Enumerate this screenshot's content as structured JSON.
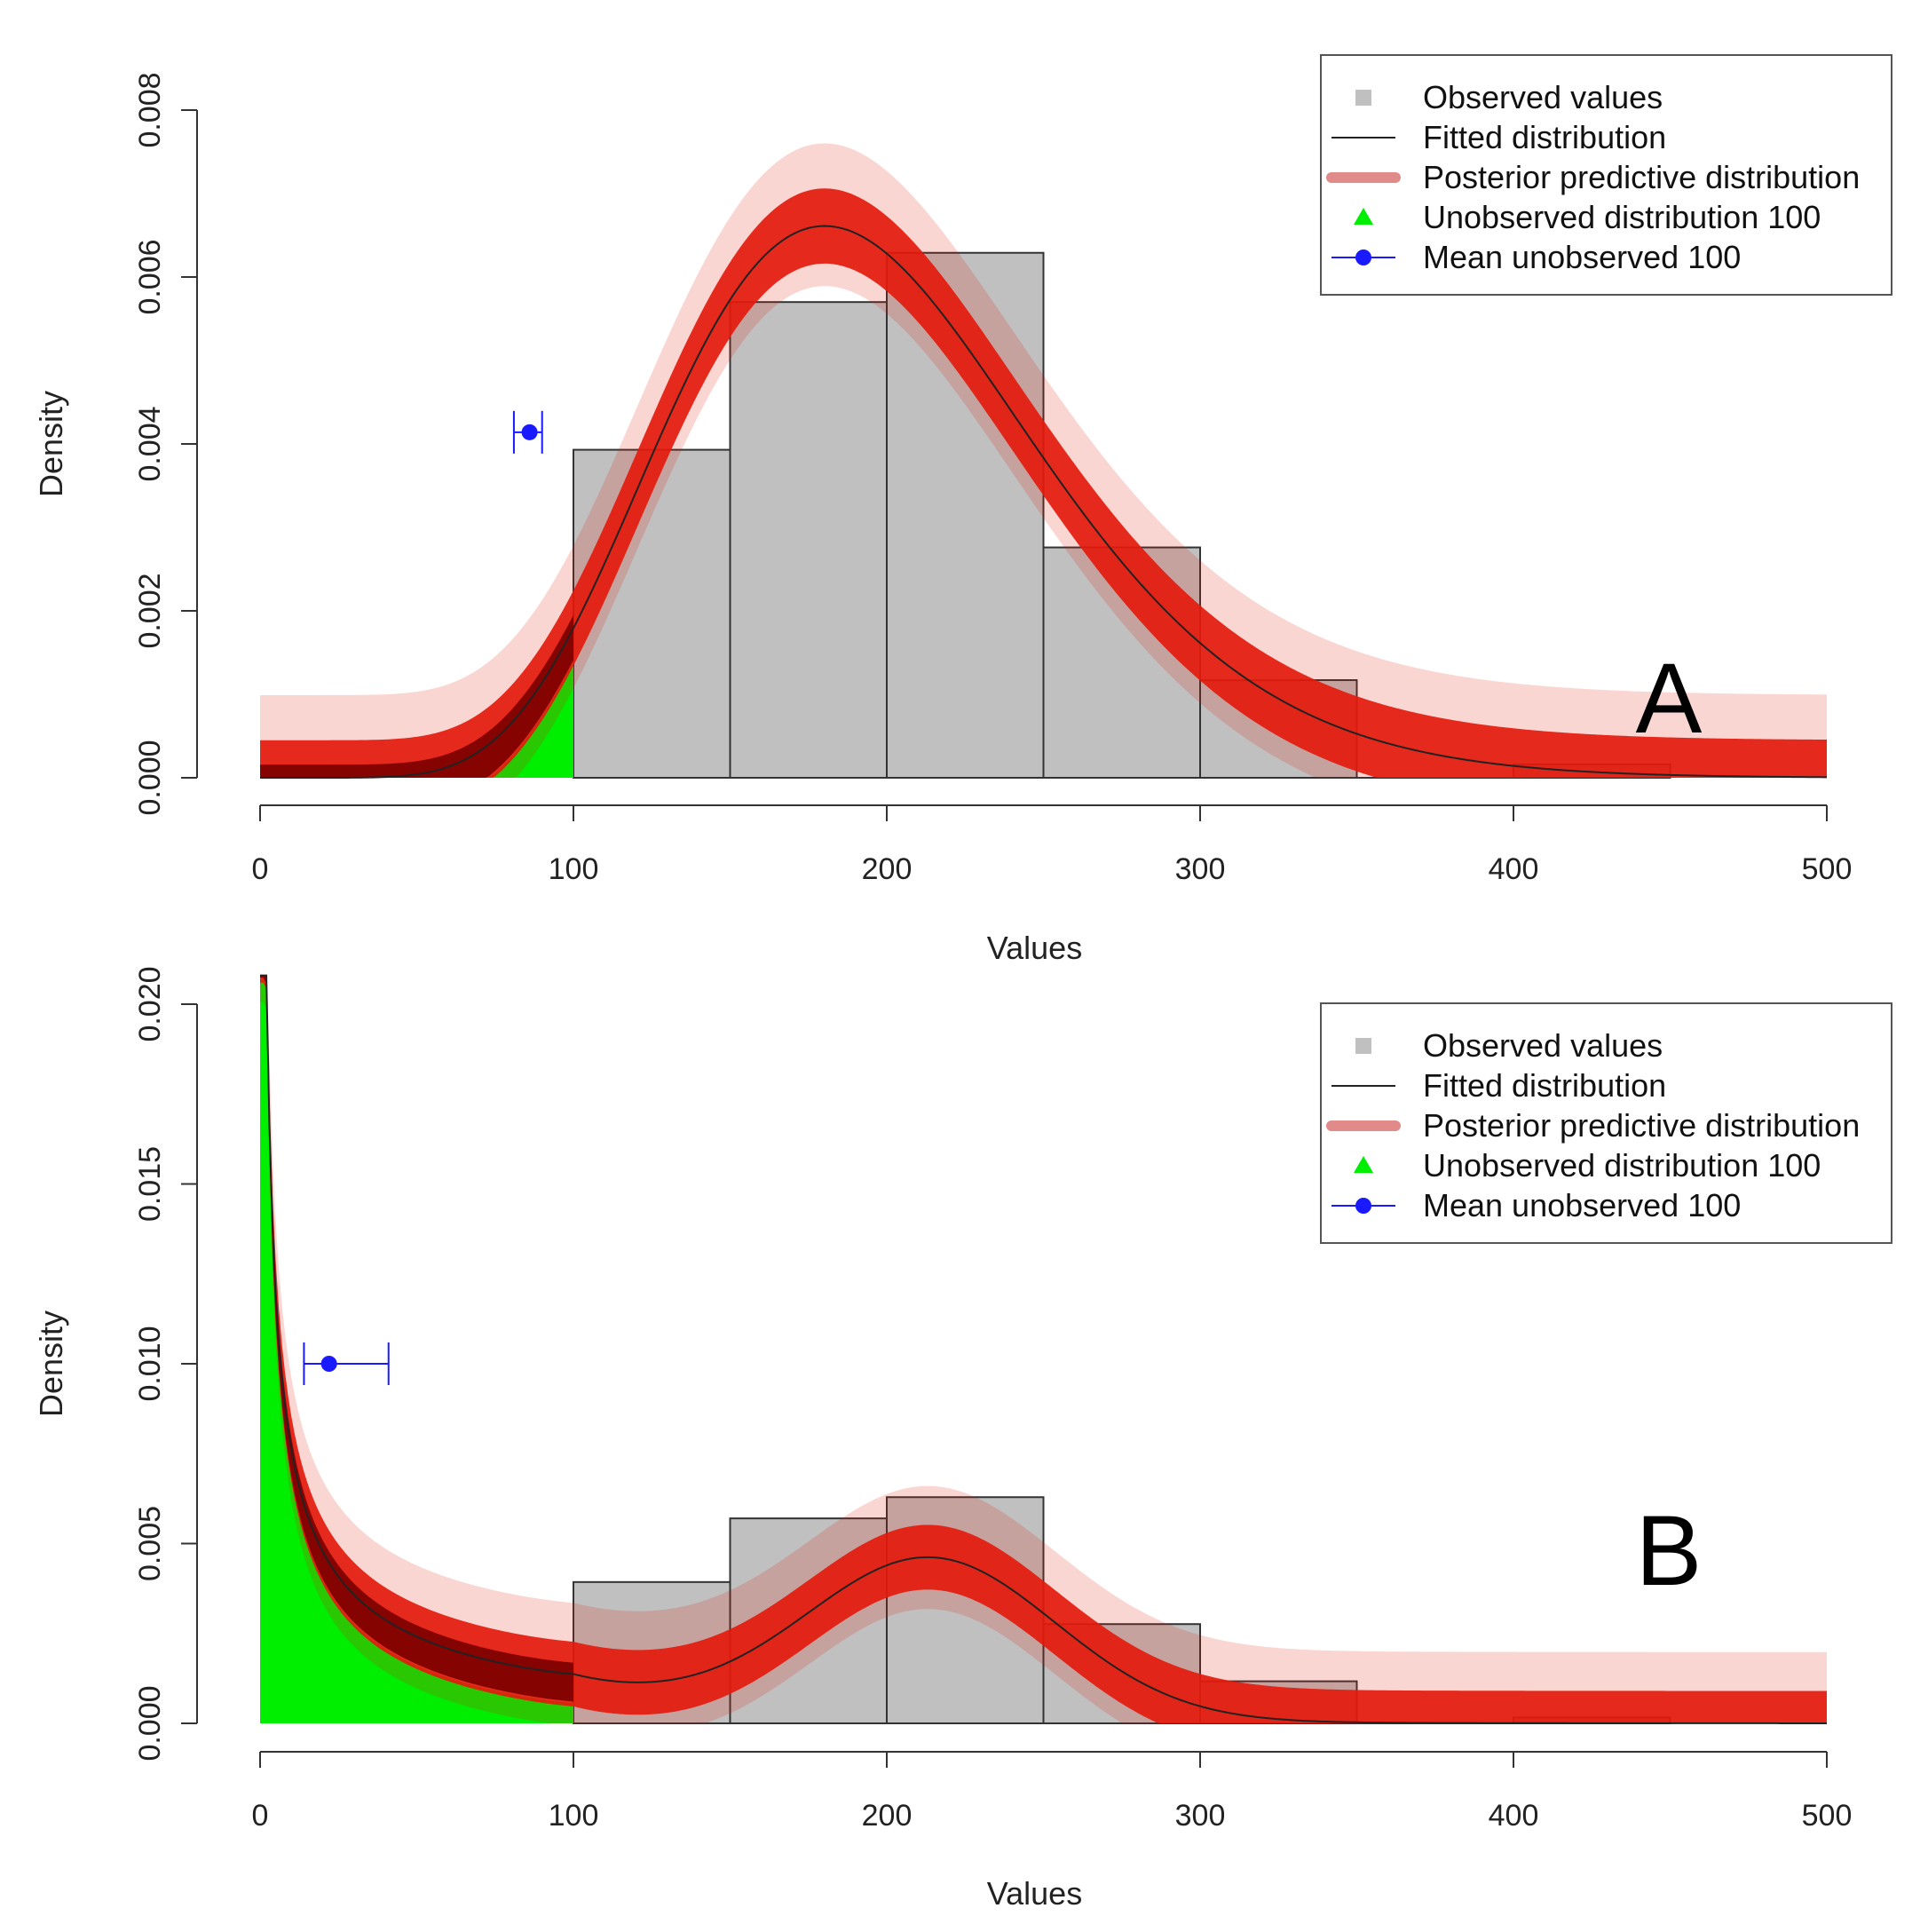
{
  "chart_data": [
    {
      "type": "bar",
      "panel_label": "A",
      "xlabel": "Values",
      "ylabel": "Density",
      "xlim": [
        0,
        500
      ],
      "ylim": [
        0,
        0.008
      ],
      "x_ticks": [
        "0",
        "100",
        "200",
        "300",
        "400",
        "500"
      ],
      "y_ticks": [
        "0.000",
        "0.002",
        "0.004",
        "0.006",
        "0.008"
      ],
      "legend": {
        "position": "top-right",
        "entries": [
          {
            "label": "Observed values",
            "color": "#c0c0c0",
            "marker": "square"
          },
          {
            "label": "Fitted distribution",
            "color": "#222222",
            "marker": "line"
          },
          {
            "label": "Posterior predictive distribution",
            "color": "#e08a8a",
            "marker": "thick-line"
          },
          {
            "label": "Unobserved distribution 100",
            "color": "#00ee00",
            "marker": "triangle"
          },
          {
            "label": "Mean unobserved 100",
            "color": "#1a1aff",
            "marker": "point-line"
          }
        ]
      },
      "histogram": {
        "bins": [
          [
            100,
            150
          ],
          [
            150,
            200
          ],
          [
            200,
            250
          ],
          [
            250,
            300
          ],
          [
            300,
            350
          ],
          [
            350,
            400
          ],
          [
            400,
            450
          ]
        ],
        "values": [
          0.00393,
          0.0057,
          0.00629,
          0.00276,
          0.00117,
          0.0,
          0.00016
        ]
      },
      "fitted_distribution": {
        "kind": "gamma",
        "mean": 200,
        "sd": 63
      },
      "posterior_band_width": 0.00045,
      "unobserved_region": [
        0,
        100
      ],
      "mean_unobserved": {
        "x": 86,
        "xmin": 81,
        "xmax": 90,
        "y": 0.00414
      },
      "colors": {
        "band": "#e31a0c",
        "band_dark": "#7a0000",
        "green": "#00ee00",
        "blue": "#1a1aff",
        "bar": "#c0c0c0"
      }
    },
    {
      "type": "bar",
      "panel_label": "B",
      "xlabel": "Values",
      "ylabel": "Density",
      "xlim": [
        0,
        500
      ],
      "ylim": [
        0,
        0.02
      ],
      "x_ticks": [
        "0",
        "100",
        "200",
        "300",
        "400",
        "500"
      ],
      "y_ticks": [
        "0.000",
        "0.005",
        "0.010",
        "0.015",
        "0.020"
      ],
      "legend": {
        "position": "top-right",
        "entries": [
          {
            "label": "Observed values",
            "color": "#c0c0c0",
            "marker": "square"
          },
          {
            "label": "Fitted distribution",
            "color": "#222222",
            "marker": "line"
          },
          {
            "label": "Posterior predictive distribution",
            "color": "#e08a8a",
            "marker": "thick-line"
          },
          {
            "label": "Unobserved distribution 100",
            "color": "#00ee00",
            "marker": "triangle"
          },
          {
            "label": "Mean unobserved 100",
            "color": "#1a1aff",
            "marker": "point-line"
          }
        ]
      },
      "histogram": {
        "bins": [
          [
            100,
            150
          ],
          [
            150,
            200
          ],
          [
            200,
            250
          ],
          [
            250,
            300
          ],
          [
            300,
            350
          ],
          [
            350,
            400
          ],
          [
            400,
            450
          ]
        ],
        "values": [
          0.00393,
          0.0057,
          0.00629,
          0.00276,
          0.00117,
          0.0,
          0.00016
        ]
      },
      "fitted_distribution": {
        "kind": "mixture",
        "mode": 214,
        "peak": 0.0052
      },
      "posterior_band_width": 0.0009,
      "unobserved_region": [
        0,
        100
      ],
      "mean_unobserved": {
        "x": 22,
        "xmin": 14,
        "xmax": 41,
        "y": 0.01
      },
      "colors": {
        "band": "#e31a0c",
        "band_dark": "#7a0000",
        "green": "#00ee00",
        "blue": "#1a1aff",
        "bar": "#c0c0c0"
      }
    }
  ]
}
